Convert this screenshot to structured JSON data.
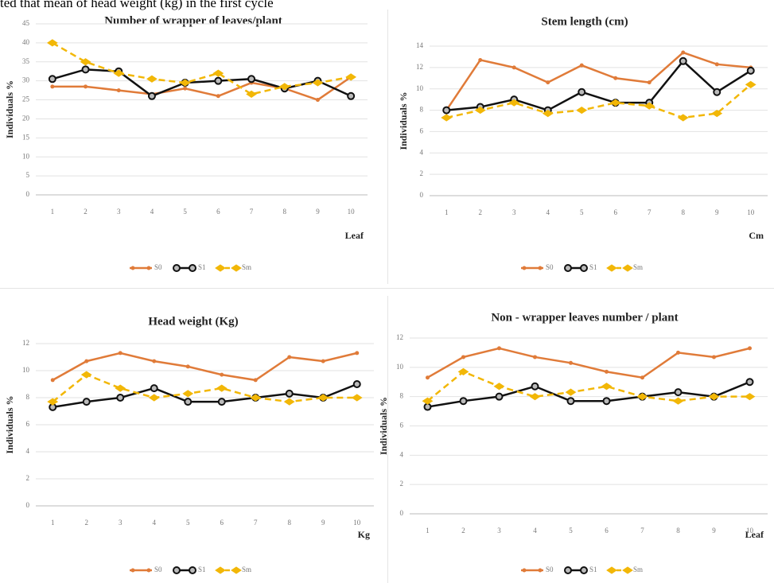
{
  "caption": "ted that mean of head weight (kg) in the first cycle",
  "chart_data": [
    {
      "type": "line",
      "title": "Number of wrapper of leaves/plant",
      "xlabel": "Leaf",
      "ylabel": "Individuals %",
      "categories": [
        "1",
        "2",
        "3",
        "4",
        "5",
        "6",
        "7",
        "8",
        "9",
        "10"
      ],
      "series": [
        {
          "name": "S0",
          "color": "#e07b39",
          "values": [
            28.5,
            28.5,
            27.5,
            26.5,
            28,
            26,
            29.5,
            28,
            25,
            31
          ]
        },
        {
          "name": "S1",
          "color": "#111111",
          "values": [
            30.5,
            33,
            32.5,
            26,
            29.5,
            30,
            30.5,
            28,
            30,
            26
          ]
        },
        {
          "name": "Sm",
          "color": "#f2b707",
          "values": [
            40,
            35,
            32,
            30.5,
            29.5,
            32,
            26.5,
            28.5,
            29.5,
            31
          ]
        }
      ],
      "ylim": [
        0,
        45
      ],
      "yticks": [
        0,
        5,
        10,
        15,
        20,
        25,
        30,
        35,
        40,
        45
      ],
      "grid": true
    },
    {
      "type": "line",
      "title": "Stem length (cm)",
      "xlabel": "Cm",
      "ylabel": "Individuals %",
      "categories": [
        "1",
        "2",
        "3",
        "4",
        "5",
        "6",
        "7",
        "8",
        "9",
        "10"
      ],
      "series": [
        {
          "name": "S0",
          "color": "#e07b39",
          "values": [
            8,
            12.7,
            12,
            10.6,
            12.2,
            11,
            10.6,
            13.4,
            12.3,
            12
          ]
        },
        {
          "name": "S1",
          "color": "#111111",
          "values": [
            8,
            8.3,
            9,
            8,
            9.7,
            8.7,
            8.7,
            12.6,
            9.7,
            11.7
          ]
        },
        {
          "name": "Sm",
          "color": "#f2b707",
          "values": [
            7.3,
            8,
            8.7,
            7.7,
            8,
            8.7,
            8.4,
            7.3,
            7.7,
            10.4
          ]
        }
      ],
      "ylim": [
        0,
        14
      ],
      "yticks": [
        0,
        2,
        4,
        6,
        8,
        10,
        12,
        14
      ],
      "grid": true
    },
    {
      "type": "line",
      "title": "Head weight (Kg)",
      "xlabel": "Kg",
      "ylabel": "Individuals %",
      "categories": [
        "1",
        "2",
        "3",
        "4",
        "5",
        "6",
        "7",
        "8",
        "9",
        "10"
      ],
      "series": [
        {
          "name": "S0",
          "color": "#e07b39",
          "values": [
            9.3,
            10.7,
            11.3,
            10.7,
            10.3,
            9.7,
            9.3,
            11,
            10.7,
            11.3
          ]
        },
        {
          "name": "S1",
          "color": "#111111",
          "values": [
            7.3,
            7.7,
            8,
            8.7,
            7.7,
            7.7,
            8,
            8.3,
            8,
            9
          ]
        },
        {
          "name": "Sm",
          "color": "#f2b707",
          "values": [
            7.7,
            9.7,
            8.7,
            8,
            8.3,
            8.7,
            8,
            7.7,
            8,
            8
          ]
        }
      ],
      "ylim": [
        0,
        12
      ],
      "yticks": [
        0,
        2,
        4,
        6,
        8,
        10,
        12
      ],
      "grid": true
    },
    {
      "type": "line",
      "title": "Non - wrapper leaves number / plant",
      "xlabel": "Leaf",
      "ylabel": "Individuals %",
      "categories": [
        "1",
        "2",
        "3",
        "4",
        "5",
        "6",
        "7",
        "8",
        "9",
        "10"
      ],
      "series": [
        {
          "name": "S0",
          "color": "#e07b39",
          "values": [
            9.3,
            10.7,
            11.3,
            10.7,
            10.3,
            9.7,
            9.3,
            11,
            10.7,
            11.3
          ]
        },
        {
          "name": "S1",
          "color": "#111111",
          "values": [
            7.3,
            7.7,
            8,
            8.7,
            7.7,
            7.7,
            8,
            8.3,
            8,
            9
          ]
        },
        {
          "name": "Sm",
          "color": "#f2b707",
          "values": [
            7.7,
            9.7,
            8.7,
            8,
            8.3,
            8.7,
            8,
            7.7,
            8,
            8
          ]
        }
      ],
      "ylim": [
        0,
        12
      ],
      "yticks": [
        0,
        2,
        4,
        6,
        8,
        10,
        12
      ],
      "grid": true
    }
  ]
}
